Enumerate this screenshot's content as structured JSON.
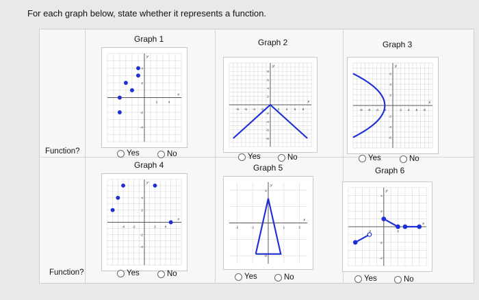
{
  "prompt": "For each graph below, state whether it represents a function.",
  "row_label": "Function?",
  "options": {
    "yes": "Yes",
    "no": "No"
  },
  "graphs": [
    {
      "title": "Graph 1",
      "ticks_x": [
        "2",
        "4"
      ],
      "ticks_y": [
        "4",
        "2",
        "-2",
        "-4"
      ],
      "points": [
        [
          -1,
          4
        ],
        [
          -1,
          3
        ],
        [
          -3,
          2
        ],
        [
          -2,
          1
        ],
        [
          -4,
          0
        ],
        [
          -4,
          -2
        ]
      ]
    },
    {
      "title": "Graph 2",
      "ticks_x": [
        "-8",
        "-6",
        "-4",
        "-2",
        "2",
        "4",
        "6",
        "8"
      ],
      "ticks_y": [
        "8",
        "6",
        "4",
        "2",
        "-2",
        "-4",
        "-6",
        "-8"
      ],
      "lines": [
        [
          [
            -9,
            -8
          ],
          [
            0,
            0
          ],
          [
            9,
            -8
          ]
        ]
      ]
    },
    {
      "title": "Graph 3",
      "ticks_x": [
        "-8",
        "-6",
        "-4",
        "-2",
        "2",
        "4",
        "6",
        "8"
      ],
      "ticks_y": [
        "6",
        "4",
        "2",
        "-2",
        "-4",
        "-6"
      ],
      "curves": [
        "parabola-left"
      ]
    },
    {
      "title": "Graph 4",
      "ticks_x": [
        "-4",
        "-2",
        "2",
        "4"
      ],
      "ticks_y": [
        "4",
        "2",
        "-2",
        "-4"
      ],
      "points": [
        [
          -4,
          6
        ],
        [
          2,
          6
        ],
        [
          -5,
          4
        ],
        [
          -6,
          2
        ],
        [
          5,
          0
        ]
      ]
    },
    {
      "title": "Graph 5",
      "ticks_x": [
        "-2",
        "-1",
        "1",
        "2"
      ],
      "ticks_y": [
        "2",
        "-2"
      ],
      "lines": [
        [
          [
            -0.8,
            -1.9
          ],
          [
            0,
            1.5
          ],
          [
            0.8,
            -1.9
          ],
          [
            -0.8,
            -1.9
          ]
        ]
      ]
    },
    {
      "title": "Graph 6",
      "ticks_x": [
        "-2",
        "2"
      ],
      "ticks_y": [
        "4",
        "2",
        "-2",
        "-4"
      ],
      "segments": [
        {
          "from": [
            -4,
            -2
          ],
          "to": [
            -2,
            -1
          ],
          "from_closed": true,
          "to_closed": false
        },
        {
          "from": [
            0,
            1
          ],
          "to": [
            2,
            0
          ],
          "from_closed": true,
          "to_closed": true
        },
        {
          "from": [
            3,
            0
          ],
          "to": [
            5,
            0
          ],
          "from_closed": true,
          "to_closed": true
        }
      ]
    }
  ],
  "colors": {
    "mark": "#1f2fd4",
    "axis": "#555555",
    "grid": "#d6d6d6"
  }
}
